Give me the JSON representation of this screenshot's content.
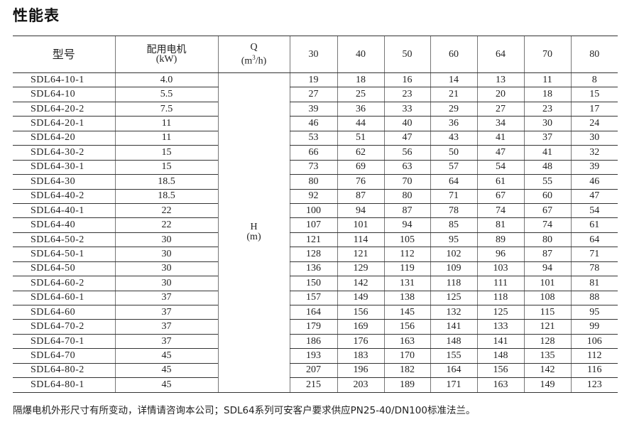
{
  "title": "性能表",
  "header": {
    "model": "型号",
    "motor_line1": "配用电机",
    "motor_line2": "(kW)",
    "q_label": "Q",
    "q_unit_pre": "(m",
    "q_unit_sup": "3",
    "q_unit_post": "/h)",
    "flows": [
      "30",
      "40",
      "50",
      "60",
      "64",
      "70",
      "80"
    ]
  },
  "h_label": "H",
  "h_unit": "(m)",
  "rows": [
    {
      "model": "SDL64-10-1",
      "kw": "4.0",
      "h": [
        "19",
        "18",
        "16",
        "14",
        "13",
        "11",
        "8"
      ]
    },
    {
      "model": "SDL64-10",
      "kw": "5.5",
      "h": [
        "27",
        "25",
        "23",
        "21",
        "20",
        "18",
        "15"
      ]
    },
    {
      "model": "SDL64-20-2",
      "kw": "7.5",
      "h": [
        "39",
        "36",
        "33",
        "29",
        "27",
        "23",
        "17"
      ]
    },
    {
      "model": "SDL64-20-1",
      "kw": "11",
      "h": [
        "46",
        "44",
        "40",
        "36",
        "34",
        "30",
        "24"
      ]
    },
    {
      "model": "SDL64-20",
      "kw": "11",
      "h": [
        "53",
        "51",
        "47",
        "43",
        "41",
        "37",
        "30"
      ]
    },
    {
      "model": "SDL64-30-2",
      "kw": "15",
      "h": [
        "66",
        "62",
        "56",
        "50",
        "47",
        "41",
        "32"
      ]
    },
    {
      "model": "SDL64-30-1",
      "kw": "15",
      "h": [
        "73",
        "69",
        "63",
        "57",
        "54",
        "48",
        "39"
      ]
    },
    {
      "model": "SDL64-30",
      "kw": "18.5",
      "h": [
        "80",
        "76",
        "70",
        "64",
        "61",
        "55",
        "46"
      ]
    },
    {
      "model": "SDL64-40-2",
      "kw": "18.5",
      "h": [
        "92",
        "87",
        "80",
        "71",
        "67",
        "60",
        "47"
      ]
    },
    {
      "model": "SDL64-40-1",
      "kw": "22",
      "h": [
        "100",
        "94",
        "87",
        "78",
        "74",
        "67",
        "54"
      ]
    },
    {
      "model": "SDL64-40",
      "kw": "22",
      "h": [
        "107",
        "101",
        "94",
        "85",
        "81",
        "74",
        "61"
      ]
    },
    {
      "model": "SDL64-50-2",
      "kw": "30",
      "h": [
        "121",
        "114",
        "105",
        "95",
        "89",
        "80",
        "64"
      ]
    },
    {
      "model": "SDL64-50-1",
      "kw": "30",
      "h": [
        "128",
        "121",
        "112",
        "102",
        "96",
        "87",
        "71"
      ]
    },
    {
      "model": "SDL64-50",
      "kw": "30",
      "h": [
        "136",
        "129",
        "119",
        "109",
        "103",
        "94",
        "78"
      ]
    },
    {
      "model": "SDL64-60-2",
      "kw": "30",
      "h": [
        "150",
        "142",
        "131",
        "118",
        "111",
        "101",
        "81"
      ]
    },
    {
      "model": "SDL64-60-1",
      "kw": "37",
      "h": [
        "157",
        "149",
        "138",
        "125",
        "118",
        "108",
        "88"
      ]
    },
    {
      "model": "SDL64-60",
      "kw": "37",
      "h": [
        "164",
        "156",
        "145",
        "132",
        "125",
        "115",
        "95"
      ]
    },
    {
      "model": "SDL64-70-2",
      "kw": "37",
      "h": [
        "179",
        "169",
        "156",
        "141",
        "133",
        "121",
        "99"
      ]
    },
    {
      "model": "SDL64-70-1",
      "kw": "37",
      "h": [
        "186",
        "176",
        "163",
        "148",
        "141",
        "128",
        "106"
      ]
    },
    {
      "model": "SDL64-70",
      "kw": "45",
      "h": [
        "193",
        "183",
        "170",
        "155",
        "148",
        "135",
        "112"
      ]
    },
    {
      "model": "SDL64-80-2",
      "kw": "45",
      "h": [
        "207",
        "196",
        "182",
        "164",
        "156",
        "142",
        "116"
      ]
    },
    {
      "model": "SDL64-80-1",
      "kw": "45",
      "h": [
        "215",
        "203",
        "189",
        "171",
        "163",
        "149",
        "123"
      ]
    }
  ],
  "note": "隔爆电机外形尺寸有所变动，详情请咨询本公司；SDL64系列可安客户要求供应PN25-40/DN100标准法兰。"
}
